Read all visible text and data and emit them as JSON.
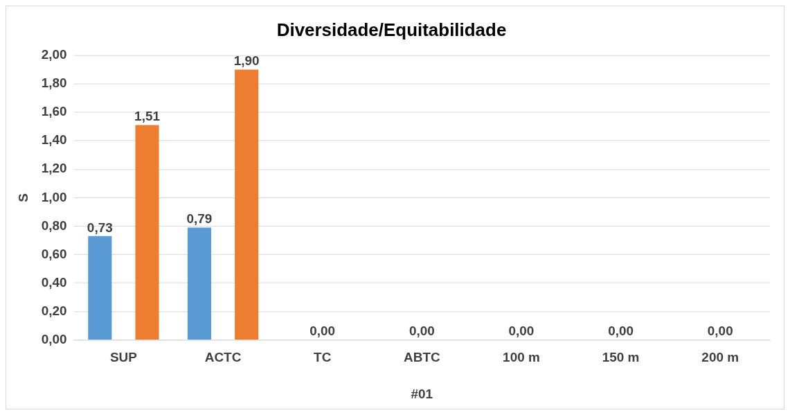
{
  "chart_data": {
    "type": "bar",
    "title": "Diversidade/Equitabilidade",
    "xlabel": "#01",
    "ylabel": "S",
    "categories": [
      "SUP",
      "ACTC",
      "TC",
      "ABTC",
      "100 m",
      "150 m",
      "200 m"
    ],
    "series": [
      {
        "color": "#5b9bd5",
        "values": [
          0.73,
          0.79,
          null,
          null,
          null,
          null,
          null
        ],
        "value_labels": [
          "0,73",
          "0,79",
          null,
          null,
          null,
          null,
          null
        ]
      },
      {
        "color": "#ed7d31",
        "values": [
          1.51,
          1.9,
          0,
          0,
          0,
          0,
          0
        ],
        "value_labels": [
          "1,51",
          "1,90",
          "0,00",
          "0,00",
          "0,00",
          "0,00",
          "0,00"
        ]
      }
    ],
    "ylim": [
      0,
      2
    ],
    "yticks": [
      {
        "value": 0,
        "label": "0,00"
      },
      {
        "value": 0.2,
        "label": "0,20"
      },
      {
        "value": 0.4,
        "label": "0,40"
      },
      {
        "value": 0.6,
        "label": "0,60"
      },
      {
        "value": 0.8,
        "label": "0,80"
      },
      {
        "value": 1,
        "label": "1,00"
      },
      {
        "value": 1.2,
        "label": "1,20"
      },
      {
        "value": 1.4,
        "label": "1,40"
      },
      {
        "value": 1.6,
        "label": "1,60"
      },
      {
        "value": 1.8,
        "label": "1,80"
      },
      {
        "value": 2,
        "label": "2,00"
      }
    ],
    "grid": "y",
    "legend": false
  }
}
